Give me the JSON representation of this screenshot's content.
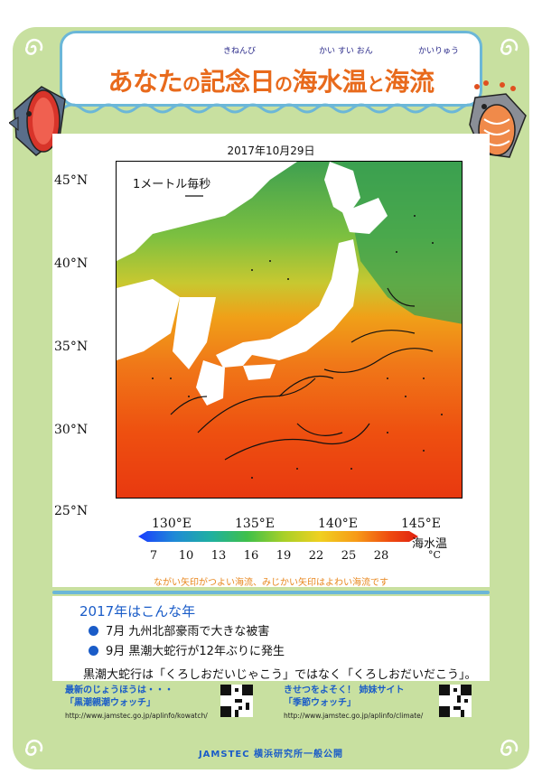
{
  "header": {
    "title_parts": [
      "あなた",
      "の",
      "記念日",
      "の",
      "海水温",
      "と",
      "海流"
    ],
    "ruby_kinenbi": "きねんび",
    "ruby_kaisuion": "かい すい おん",
    "ruby_kairyu": "かいりゅう"
  },
  "map": {
    "date": "2017年10月29日",
    "reference_arrow_label": "1メートル毎秒",
    "lat_labels": [
      "45°N",
      "40°N",
      "35°N",
      "30°N",
      "25°N"
    ],
    "lon_labels": [
      "130°E",
      "135°E",
      "140°E",
      "145°E"
    ],
    "colorbar": {
      "title": "海水温",
      "unit": "°C",
      "ticks": [
        "7",
        "10",
        "13",
        "16",
        "19",
        "22",
        "25",
        "28"
      ],
      "colors": [
        "#1a3cff",
        "#1f8ad6",
        "#1fb0a0",
        "#3fc04a",
        "#a8d028",
        "#f0d020",
        "#f79a18",
        "#ee4a10",
        "#e02010"
      ]
    },
    "caption": "ながい矢印がつよい海流、みじかい矢印はよわい海流です"
  },
  "events": {
    "title": "2017年はこんな年",
    "items": [
      "7月 九州北部豪雨で大きな被害",
      "9月 黒潮大蛇行が12年ぶりに発生"
    ],
    "note": "黒潮大蛇行は「くろしおだいじゃこう」ではなく「くろしおだいだこう」。"
  },
  "links": [
    {
      "title_line1": "最新のじょうほうは・・・",
      "title_line2": "「黒潮親潮ウォッチ」",
      "url": "http://www.jamstec.go.jp/aplinfo/kowatch/"
    },
    {
      "title_line1": "きせつをよそく！ 姉妹サイト",
      "title_line2": "「季節ウォッチ」",
      "url": "http://www.jamstec.go.jp/aplinfo/climate/"
    }
  ],
  "footer": "JAMSTEC 横浜研究所一般公開",
  "colors": {
    "accent_orange": "#e86a1c",
    "accent_blue": "#1a5cc8",
    "frame_green": "#c8e0a0",
    "border_blue": "#6bb7d8"
  },
  "icons": [
    "tuna-fish-icon",
    "salmon-fish-icon",
    "swirl-ornament-icon",
    "qr-code-icon"
  ]
}
